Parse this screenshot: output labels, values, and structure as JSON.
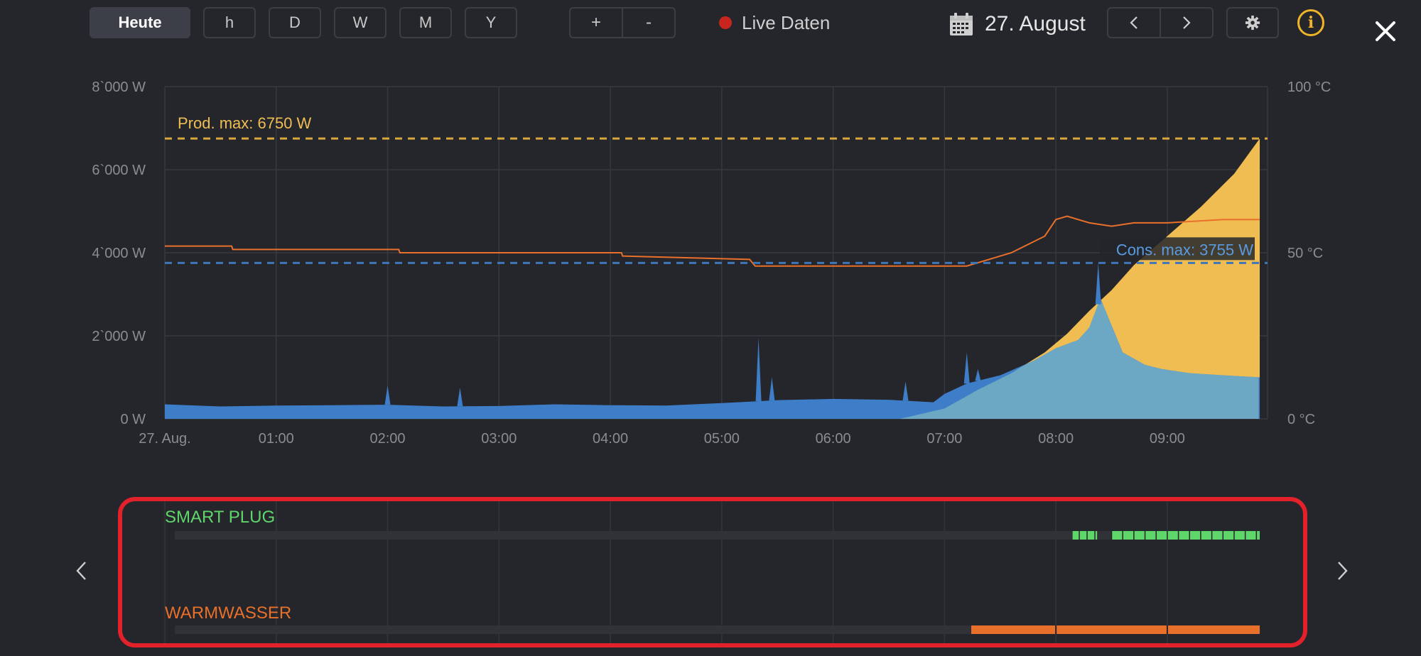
{
  "toolbar": {
    "today_label": "Heute",
    "range_buttons": [
      "h",
      "D",
      "W",
      "M",
      "Y"
    ],
    "zoom_in_label": "+",
    "zoom_out_label": "-",
    "live_label": "Live Daten",
    "live_color": "#c8251f",
    "date_label": "27. August",
    "calendar_icon": "calendar-icon",
    "prev_icon": "chevron-left-icon",
    "next_icon": "chevron-right-icon",
    "settings_icon": "gear-icon",
    "info_icon": "info-icon",
    "close_icon": "close-icon"
  },
  "colors": {
    "production": "#f0bd52",
    "consumption": "#3e7ec8",
    "self_consumption": "#6ca7c4",
    "temperature": "#e8702a",
    "prod_max_line": "#d9a73d",
    "cons_max_line": "#3f76b8",
    "smart_plug": "#5fd66a",
    "warmwasser": "#e8702a",
    "highlight_border": "#e3212a"
  },
  "chart_data": {
    "type": "area",
    "y_left": {
      "label": "",
      "unit": "W",
      "range": [
        0,
        8000
      ],
      "ticks": [
        "0 W",
        "2`000 W",
        "4`000 W",
        "6`000 W",
        "8`000 W"
      ]
    },
    "y_right": {
      "label": "",
      "unit": "°C",
      "range": [
        0,
        100
      ],
      "ticks": [
        "0 °C",
        "50 °C",
        "100 °C"
      ]
    },
    "x_axis": {
      "range_hours": [
        0,
        9.9
      ],
      "ticks": [
        "27. Aug.",
        "01:00",
        "02:00",
        "03:00",
        "04:00",
        "05:00",
        "06:00",
        "07:00",
        "08:00",
        "09:00"
      ]
    },
    "grid": true,
    "annotations": [
      {
        "label": "Prod. max: 6750 W",
        "value": 6750,
        "axis": "left"
      },
      {
        "label": "Cons. max: 3755 W",
        "value": 3755,
        "axis": "left"
      }
    ],
    "series": [
      {
        "id": "production",
        "x": [
          6.6,
          7.0,
          7.3,
          7.6,
          7.9,
          8.1,
          8.3,
          8.5,
          8.7,
          9.0,
          9.3,
          9.6,
          9.83
        ],
        "values": [
          0,
          250,
          700,
          1100,
          1600,
          2050,
          2600,
          3100,
          3700,
          4400,
          5100,
          5900,
          6750
        ]
      },
      {
        "id": "consumption",
        "x": [
          0,
          0.5,
          1.0,
          1.5,
          2.0,
          2.5,
          3.0,
          3.5,
          4.0,
          4.5,
          5.0,
          5.3,
          5.5,
          6.0,
          6.5,
          6.9,
          7.0,
          7.2,
          7.5,
          7.8,
          8.0,
          8.2,
          8.3,
          8.4,
          8.6,
          8.8,
          8.95,
          9.2,
          9.5,
          9.83
        ],
        "values": [
          350,
          300,
          320,
          330,
          340,
          300,
          310,
          350,
          330,
          320,
          380,
          420,
          450,
          480,
          460,
          400,
          600,
          850,
          1050,
          1400,
          1700,
          1900,
          2200,
          2900,
          1600,
          1300,
          1200,
          1100,
          1050,
          1000
        ]
      },
      {
        "id": "temperature",
        "x": [
          0,
          0.6,
          0.61,
          2.1,
          2.11,
          4.1,
          4.11,
          5.25,
          5.3,
          6.5,
          7.2,
          7.3,
          7.6,
          7.9,
          8.0,
          8.1,
          8.3,
          8.5,
          8.7,
          9.0,
          9.5,
          9.83
        ],
        "values": [
          52,
          52,
          51,
          51,
          50,
          50,
          49,
          48,
          46,
          46,
          46,
          47,
          50,
          55,
          60,
          61,
          59,
          58,
          59,
          59,
          60,
          60
        ]
      }
    ],
    "spikes": [
      {
        "x": 2.0,
        "value": 800
      },
      {
        "x": 2.65,
        "value": 750
      },
      {
        "x": 5.33,
        "value": 1950
      },
      {
        "x": 5.45,
        "value": 1000
      },
      {
        "x": 6.65,
        "value": 900
      },
      {
        "x": 7.2,
        "value": 1600
      },
      {
        "x": 7.3,
        "value": 1200
      },
      {
        "x": 8.38,
        "value": 3755
      }
    ]
  },
  "devices": {
    "smart_plug": {
      "label": "SMART PLUG",
      "active_periods": [
        [
          8.15,
          8.37
        ],
        [
          8.5,
          9.83
        ]
      ]
    },
    "warmwasser": {
      "label": "WARMWASSER",
      "active_periods": [
        [
          7.24,
          9.83
        ]
      ]
    }
  }
}
